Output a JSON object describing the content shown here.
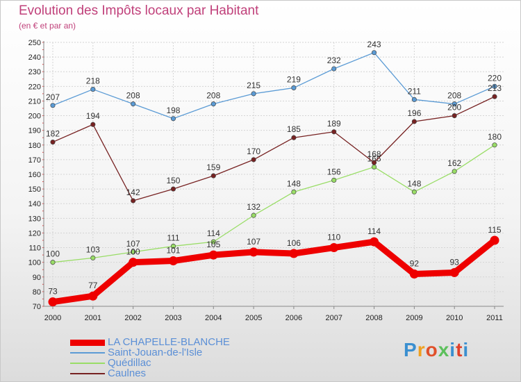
{
  "title": "Evolution des Impôts locaux par Habitant",
  "subtitle": "(en € et par an)",
  "logo": {
    "text": "Proxiti",
    "letter_colors": [
      "#3a8fd0",
      "#f0a020",
      "#e0502a",
      "#5cc05c",
      "#3a8fd0",
      "#e0402a",
      "#3a8fd0"
    ]
  },
  "chart_data": {
    "type": "line",
    "title": "Evolution des Impôts locaux par Habitant",
    "subtitle": "(en € et par an)",
    "x": [
      "2000",
      "2001",
      "2002",
      "2003",
      "2004",
      "2005",
      "2006",
      "2007",
      "2008",
      "2009",
      "2010",
      "2011"
    ],
    "ylim": [
      70,
      250
    ],
    "ytick_step": 10,
    "grid": true,
    "legend_position": "bottom-left",
    "series": [
      {
        "name": "LA CHAPELLE-BLANCHE",
        "color": "#ee0000",
        "values": [
          73,
          77,
          100,
          101,
          105,
          107,
          106,
          110,
          114,
          92,
          93,
          115
        ]
      },
      {
        "name": "Saint-Jouan-de-l'Isle",
        "color": "#5b9bd5",
        "values": [
          207,
          218,
          208,
          198,
          208,
          215,
          219,
          232,
          243,
          211,
          208,
          220
        ]
      },
      {
        "name": "Quédillac",
        "color": "#99dd66",
        "values": [
          100,
          103,
          107,
          111,
          114,
          132,
          148,
          156,
          165,
          148,
          162,
          180
        ]
      },
      {
        "name": "Caulnes",
        "color": "#772222",
        "values": [
          182,
          194,
          142,
          150,
          159,
          170,
          185,
          189,
          168,
          196,
          200,
          213
        ]
      }
    ]
  }
}
